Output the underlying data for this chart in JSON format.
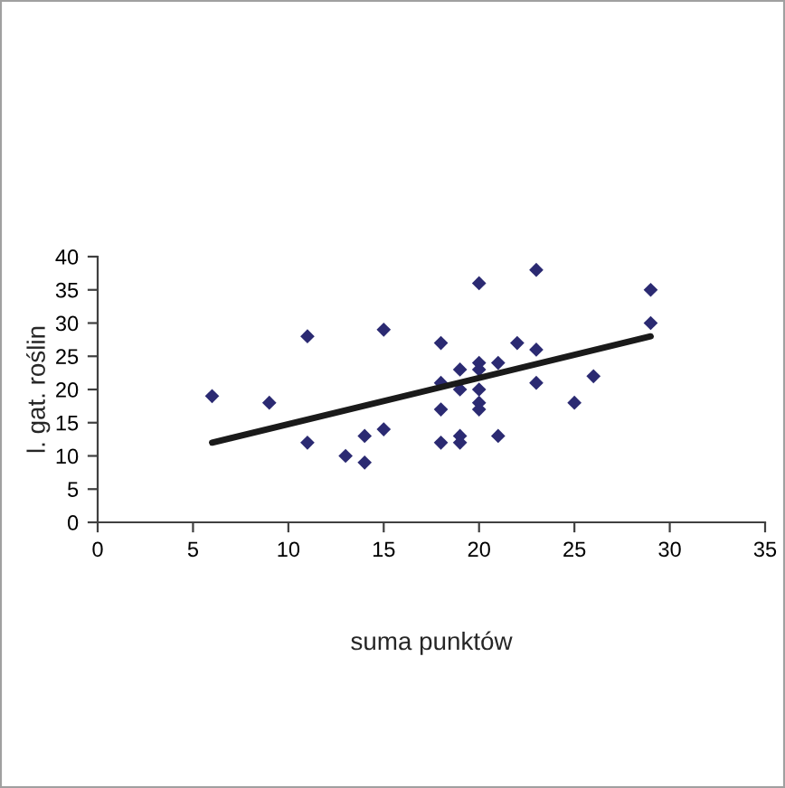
{
  "chart_data": {
    "type": "scatter",
    "xlabel": "suma punktów",
    "ylabel": "l. gat. roślin",
    "xlim": [
      0,
      35
    ],
    "xticks": [
      0,
      5,
      10,
      15,
      20,
      25,
      30,
      35
    ],
    "ylim": [
      0,
      40
    ],
    "yticks": [
      0,
      5,
      10,
      15,
      20,
      25,
      30,
      35,
      40
    ],
    "grid": false,
    "legend": false,
    "marker": "diamond",
    "series": [
      {
        "color": "#2b2a72",
        "x": [
          6,
          9,
          11,
          11,
          13,
          14,
          14,
          15,
          15,
          18,
          18,
          18,
          18,
          19,
          19,
          19,
          19,
          20,
          20,
          20,
          20,
          20,
          20,
          21,
          21,
          22,
          23,
          23,
          23,
          25,
          26,
          29,
          29
        ],
        "values": [
          19,
          18,
          28,
          12,
          10,
          13,
          9,
          14,
          29,
          27,
          21,
          17,
          12,
          23,
          20,
          13,
          12,
          36,
          24,
          23,
          20,
          18,
          17,
          24,
          13,
          27,
          38,
          26,
          21,
          18,
          22,
          35,
          30
        ]
      },
      {
        "type": "line",
        "color": "#1a1a1a",
        "x": [
          6,
          29
        ],
        "values": [
          12,
          28
        ],
        "marker": "none",
        "line_style": "solid"
      }
    ]
  }
}
